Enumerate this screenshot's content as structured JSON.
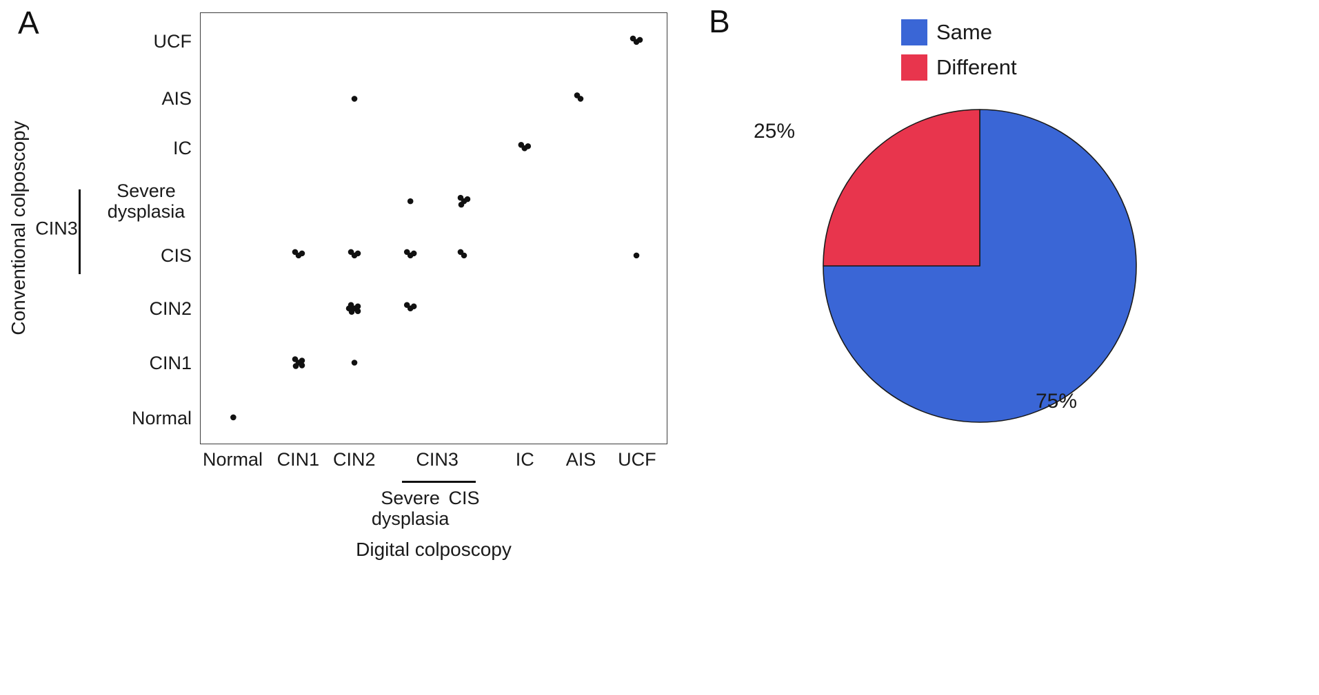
{
  "figure": {
    "panel_a_label": "A",
    "panel_b_label": "B"
  },
  "chart_data": [
    {
      "type": "scatter",
      "panel": "A",
      "xlabel": "Digital colposcopy",
      "ylabel": "Conventional colposcopy",
      "x_categories": [
        "Normal",
        "CIN1",
        "CIN2",
        "Severe dysplasia",
        "CIS",
        "IC",
        "AIS",
        "UCF"
      ],
      "y_categories": [
        "UCF",
        "AIS",
        "IC",
        "Severe dysplasia",
        "CIS",
        "CIN2",
        "CIN1",
        "Normal"
      ],
      "x_group": {
        "label": "CIN3",
        "members": [
          "Severe dysplasia",
          "CIS"
        ]
      },
      "y_group": {
        "label": "CIN3",
        "members": [
          "Severe dysplasia",
          "CIS"
        ]
      },
      "point_color": "#111111",
      "points": [
        {
          "x": "Normal",
          "y": "Normal",
          "count": 1
        },
        {
          "x": "CIN1",
          "y": "CIN1",
          "count": 5
        },
        {
          "x": "CIN2",
          "y": "CIN1",
          "count": 1
        },
        {
          "x": "CIN2",
          "y": "CIN2",
          "count": 6
        },
        {
          "x": "Severe dysplasia",
          "y": "CIN2",
          "count": 3
        },
        {
          "x": "CIN1",
          "y": "CIS",
          "count": 3
        },
        {
          "x": "CIN2",
          "y": "CIS",
          "count": 3
        },
        {
          "x": "Severe dysplasia",
          "y": "CIS",
          "count": 3
        },
        {
          "x": "CIS",
          "y": "CIS",
          "count": 2
        },
        {
          "x": "UCF",
          "y": "CIS",
          "count": 1
        },
        {
          "x": "Severe dysplasia",
          "y": "Severe dysplasia",
          "count": 1
        },
        {
          "x": "CIS",
          "y": "Severe dysplasia",
          "count": 4
        },
        {
          "x": "IC",
          "y": "IC",
          "count": 3
        },
        {
          "x": "CIN2",
          "y": "AIS",
          "count": 1
        },
        {
          "x": "AIS",
          "y": "AIS",
          "count": 2
        },
        {
          "x": "UCF",
          "y": "UCF",
          "count": 3
        }
      ]
    },
    {
      "type": "pie",
      "panel": "B",
      "slices": [
        {
          "label": "Same",
          "value": 75,
          "pct_label": "75%",
          "color": "#3A66D6"
        },
        {
          "label": "Different",
          "value": 25,
          "pct_label": "25%",
          "color": "#E8354D"
        }
      ],
      "legend_position": "top-right",
      "start_angle": "top",
      "direction": "clockwise",
      "outline_color": "#1a1a1a"
    }
  ]
}
